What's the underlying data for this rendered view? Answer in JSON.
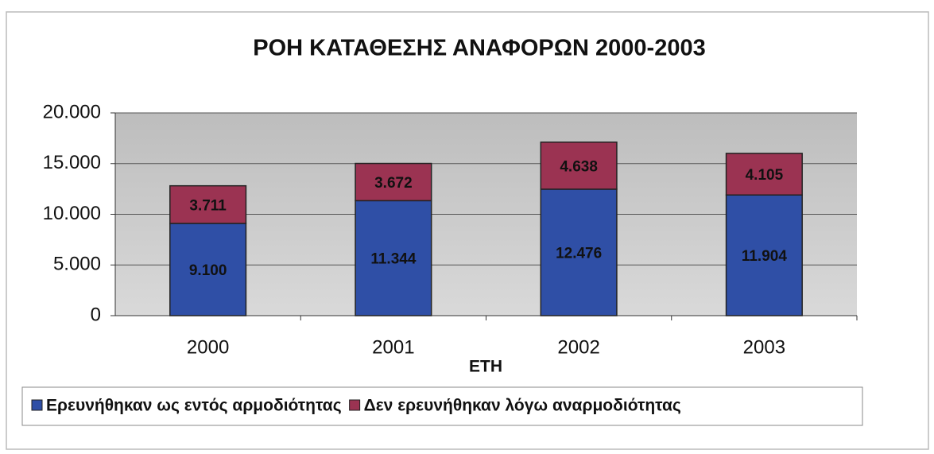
{
  "chart_data": {
    "type": "stacked_bar",
    "title": "ΡΟΗ ΚΑΤΑΘΕΣΗΣ ΑΝΑΦΟΡΩΝ 2000-2003",
    "x_label": "ΕΤΗ",
    "categories": [
      "2000",
      "2001",
      "2002",
      "2003"
    ],
    "series": [
      {
        "name": "Ερευνήθηκαν ως εντός αρμοδιότητας",
        "color": "#2f4fa6",
        "values": [
          9100,
          11344,
          12476,
          11904
        ],
        "value_labels": [
          "9.100",
          "11.344",
          "12.476",
          "11.904"
        ]
      },
      {
        "name": "Δεν ερευνήθηκαν λόγω αναρμοδιότητας",
        "color": "#9b3352",
        "values": [
          3711,
          3672,
          4638,
          4105
        ],
        "value_labels": [
          "3.711",
          "3.672",
          "4.638",
          "4.105"
        ]
      }
    ],
    "ylim": [
      0,
      20000
    ],
    "yticks": [
      0,
      {
        "value": 5000,
        "label": "5.000"
      },
      {
        "value": 10000,
        "label": "10.000"
      },
      {
        "value": 15000,
        "label": "15.000"
      },
      {
        "value": 20000,
        "label": "20.000"
      }
    ],
    "grid": true,
    "legend": "bottom"
  }
}
